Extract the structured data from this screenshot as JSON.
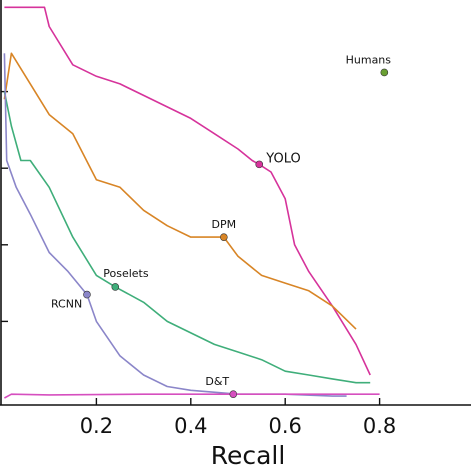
{
  "chart_data": {
    "type": "line",
    "title": "",
    "xlabel": "Recall",
    "ylabel": "",
    "xlim": [
      0,
      0.83
    ],
    "ylim": [
      0,
      1.0
    ],
    "grid": false,
    "legend": "none",
    "x_ticks": [
      {
        "value": 0.2,
        "label": "0.2"
      },
      {
        "value": 0.4,
        "label": "0.4"
      },
      {
        "value": 0.6,
        "label": "0.6"
      },
      {
        "value": 0.8,
        "label": "0.8"
      }
    ],
    "y_tick_values": [
      0.2,
      0.4,
      0.6,
      0.8
    ],
    "series": [
      {
        "name": "YOLO",
        "color": "#d6339b",
        "x": [
          0.005,
          0.09,
          0.1,
          0.15,
          0.2,
          0.25,
          0.3,
          0.35,
          0.4,
          0.45,
          0.5,
          0.53,
          0.545,
          0.57,
          0.6,
          0.62,
          0.65,
          0.7,
          0.75,
          0.78
        ],
        "y": [
          1.02,
          1.02,
          0.97,
          0.87,
          0.84,
          0.82,
          0.79,
          0.76,
          0.73,
          0.69,
          0.65,
          0.62,
          0.61,
          0.59,
          0.52,
          0.4,
          0.33,
          0.24,
          0.14,
          0.06
        ],
        "marker": {
          "x": 0.545,
          "y": 0.61,
          "label": "YOLO"
        }
      },
      {
        "name": "DPM",
        "color": "#d88526",
        "x": [
          0.005,
          0.02,
          0.06,
          0.1,
          0.15,
          0.2,
          0.25,
          0.3,
          0.35,
          0.4,
          0.47,
          0.5,
          0.55,
          0.6,
          0.65,
          0.7,
          0.75
        ],
        "y": [
          0.78,
          0.9,
          0.82,
          0.74,
          0.69,
          0.57,
          0.55,
          0.49,
          0.45,
          0.42,
          0.42,
          0.37,
          0.32,
          0.3,
          0.28,
          0.24,
          0.18
        ],
        "marker": {
          "x": 0.47,
          "y": 0.42,
          "label": "DPM"
        }
      },
      {
        "name": "Poselets",
        "color": "#3fae7a",
        "x": [
          0.005,
          0.02,
          0.04,
          0.06,
          0.1,
          0.15,
          0.2,
          0.24,
          0.3,
          0.35,
          0.4,
          0.45,
          0.5,
          0.55,
          0.6,
          0.65,
          0.7,
          0.75,
          0.78
        ],
        "y": [
          0.8,
          0.71,
          0.62,
          0.62,
          0.55,
          0.42,
          0.32,
          0.29,
          0.25,
          0.2,
          0.17,
          0.14,
          0.12,
          0.1,
          0.07,
          0.06,
          0.05,
          0.04,
          0.04
        ],
        "marker": {
          "x": 0.24,
          "y": 0.29,
          "label": "Poselets"
        }
      },
      {
        "name": "RCNN",
        "color": "#8b86c9",
        "x": [
          0.005,
          0.01,
          0.03,
          0.06,
          0.1,
          0.14,
          0.18,
          0.2,
          0.25,
          0.3,
          0.35,
          0.4,
          0.5,
          0.6,
          0.7,
          0.73
        ],
        "y": [
          0.9,
          0.62,
          0.55,
          0.48,
          0.38,
          0.33,
          0.27,
          0.2,
          0.11,
          0.06,
          0.03,
          0.02,
          0.01,
          0.01,
          0.005,
          0.005
        ],
        "marker": {
          "x": 0.18,
          "y": 0.27,
          "label": "RCNN"
        }
      },
      {
        "name": "D&T",
        "color": "#d64fbf",
        "x": [
          0.005,
          0.02,
          0.1,
          0.3,
          0.49,
          0.6,
          0.8
        ],
        "y": [
          0.0,
          0.01,
          0.008,
          0.01,
          0.01,
          0.01,
          0.01
        ],
        "marker": {
          "x": 0.49,
          "y": 0.01,
          "label": "D&T"
        }
      },
      {
        "name": "Humans",
        "color": "#6aa033",
        "x": [],
        "y": [],
        "marker": {
          "x": 0.81,
          "y": 0.85,
          "label": "Humans"
        }
      }
    ]
  }
}
